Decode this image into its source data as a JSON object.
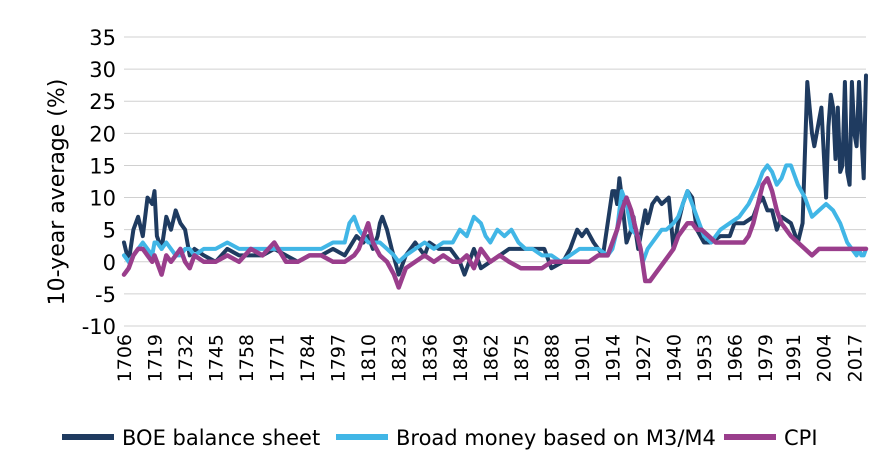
{
  "chart_data": {
    "type": "line",
    "ylabel": "10-year average (%)",
    "xlabel": "",
    "ylim": [
      -10,
      35
    ],
    "yticks": [
      35,
      30,
      25,
      20,
      15,
      10,
      5,
      0,
      -5,
      -10
    ],
    "xlim": [
      1706,
      2022
    ],
    "xticks": [
      "1706",
      "1719",
      "1732",
      "1745",
      "1758",
      "1771",
      "1784",
      "1797",
      "1810",
      "1823",
      "1836",
      "1849",
      "1862",
      "1875",
      "1888",
      "1901",
      "1914",
      "1927",
      "1940",
      "1953",
      "1966",
      "1979",
      "1991",
      "2004",
      "2017"
    ],
    "grid": "horizontal",
    "legend_position": "bottom",
    "series": [
      {
        "name": "BOE balance sheet",
        "color": "#1f3b60",
        "x": [
          1706,
          1708,
          1710,
          1712,
          1714,
          1716,
          1718,
          1719,
          1720,
          1722,
          1724,
          1726,
          1728,
          1730,
          1732,
          1734,
          1736,
          1740,
          1745,
          1750,
          1755,
          1760,
          1765,
          1770,
          1775,
          1780,
          1785,
          1790,
          1795,
          1800,
          1805,
          1808,
          1810,
          1812,
          1814,
          1815,
          1816,
          1818,
          1820,
          1823,
          1826,
          1830,
          1834,
          1836,
          1840,
          1845,
          1849,
          1851,
          1853,
          1855,
          1858,
          1862,
          1866,
          1870,
          1875,
          1880,
          1885,
          1888,
          1893,
          1896,
          1899,
          1901,
          1903,
          1906,
          1910,
          1914,
          1915,
          1916,
          1917,
          1918,
          1920,
          1922,
          1923,
          1925,
          1927,
          1928,
          1929,
          1931,
          1933,
          1935,
          1938,
          1940,
          1942,
          1944,
          1946,
          1948,
          1950,
          1953,
          1956,
          1960,
          1964,
          1966,
          1970,
          1974,
          1976,
          1978,
          1980,
          1982,
          1984,
          1986,
          1990,
          1993,
          1995,
          1997,
          1999,
          2000,
          2001,
          2002,
          2003,
          2005,
          2006,
          2007,
          2008,
          2009,
          2010,
          2011,
          2012,
          2013,
          2014,
          2015,
          2016,
          2017,
          2018,
          2019,
          2020,
          2021,
          2022
        ],
        "values": [
          3,
          0,
          5,
          7,
          4,
          10,
          9,
          11,
          4,
          2,
          7,
          5,
          8,
          6,
          5,
          1,
          2,
          1,
          0,
          2,
          1,
          1,
          1,
          2,
          1,
          0,
          1,
          1,
          2,
          1,
          4,
          3,
          4,
          2,
          4,
          6,
          7,
          5,
          2,
          -2,
          1,
          3,
          1,
          3,
          2,
          2,
          0,
          -2,
          0,
          2,
          -1,
          0,
          1,
          2,
          2,
          2,
          2,
          -1,
          0,
          2,
          5,
          4,
          5,
          3,
          1,
          11,
          11,
          9,
          13,
          10,
          3,
          5,
          7,
          2,
          6,
          8,
          6,
          9,
          10,
          9,
          10,
          2,
          6,
          9,
          11,
          10,
          5,
          3,
          3,
          4,
          4,
          6,
          6,
          7,
          9,
          10,
          8,
          8,
          5,
          7,
          6,
          3,
          6,
          28,
          20,
          18,
          20,
          22,
          24,
          10,
          21,
          26,
          24,
          16,
          24,
          14,
          15,
          28,
          14,
          12,
          28,
          20,
          18,
          28,
          20,
          13,
          29
        ]
      },
      {
        "name": "Broad money based on M3/M4",
        "color": "#41b6e6",
        "x": [
          1706,
          1708,
          1710,
          1712,
          1714,
          1716,
          1718,
          1719,
          1720,
          1722,
          1724,
          1726,
          1728,
          1730,
          1732,
          1734,
          1736,
          1740,
          1745,
          1750,
          1755,
          1760,
          1765,
          1770,
          1775,
          1780,
          1785,
          1790,
          1795,
          1800,
          1802,
          1804,
          1806,
          1808,
          1810,
          1812,
          1815,
          1818,
          1821,
          1823,
          1826,
          1830,
          1834,
          1838,
          1842,
          1846,
          1849,
          1852,
          1855,
          1858,
          1860,
          1862,
          1865,
          1868,
          1871,
          1874,
          1877,
          1880,
          1884,
          1888,
          1892,
          1896,
          1900,
          1904,
          1908,
          1912,
          1914,
          1916,
          1917,
          1918,
          1920,
          1922,
          1925,
          1927,
          1929,
          1931,
          1933,
          1935,
          1937,
          1940,
          1942,
          1944,
          1946,
          1948,
          1950,
          1953,
          1956,
          1960,
          1964,
          1968,
          1972,
          1976,
          1978,
          1980,
          1982,
          1984,
          1986,
          1988,
          1990,
          1993,
          1996,
          1999,
          2002,
          2005,
          2008,
          2011,
          2014,
          2016,
          2018,
          2019,
          2020,
          2021,
          2022
        ],
        "values": [
          1,
          0,
          1,
          2,
          3,
          2,
          1,
          3,
          3,
          2,
          3,
          2,
          1,
          1,
          2,
          2,
          1,
          2,
          2,
          3,
          2,
          2,
          2,
          2,
          2,
          2,
          2,
          2,
          3,
          3,
          6,
          7,
          5,
          4,
          3,
          3,
          3,
          2,
          1,
          0,
          1,
          2,
          3,
          2,
          3,
          3,
          5,
          4,
          7,
          6,
          4,
          3,
          5,
          4,
          5,
          3,
          2,
          2,
          1,
          1,
          0,
          1,
          2,
          2,
          2,
          1,
          2,
          5,
          8,
          11,
          9,
          5,
          4,
          0,
          2,
          3,
          4,
          5,
          5,
          6,
          7,
          9,
          11,
          9,
          7,
          4,
          3,
          5,
          6,
          7,
          9,
          12,
          14,
          15,
          14,
          12,
          13,
          15,
          15,
          12,
          10,
          7,
          8,
          9,
          8,
          6,
          3,
          2,
          1,
          2,
          1,
          1,
          2
        ]
      },
      {
        "name": "CPI",
        "color": "#9a3e8c",
        "x": [
          1706,
          1708,
          1710,
          1712,
          1714,
          1716,
          1718,
          1719,
          1720,
          1722,
          1724,
          1726,
          1728,
          1730,
          1732,
          1734,
          1736,
          1740,
          1745,
          1750,
          1755,
          1760,
          1765,
          1770,
          1775,
          1780,
          1785,
          1790,
          1795,
          1800,
          1804,
          1806,
          1808,
          1810,
          1812,
          1815,
          1818,
          1821,
          1823,
          1826,
          1830,
          1834,
          1838,
          1842,
          1846,
          1849,
          1852,
          1855,
          1858,
          1862,
          1866,
          1870,
          1875,
          1880,
          1884,
          1888,
          1892,
          1896,
          1900,
          1904,
          1908,
          1912,
          1914,
          1916,
          1918,
          1920,
          1922,
          1924,
          1926,
          1928,
          1930,
          1932,
          1934,
          1936,
          1938,
          1940,
          1942,
          1944,
          1946,
          1948,
          1950,
          1952,
          1955,
          1958,
          1962,
          1966,
          1970,
          1972,
          1974,
          1976,
          1978,
          1980,
          1982,
          1984,
          1986,
          1988,
          1990,
          1993,
          1996,
          1999,
          2002,
          2005,
          2008,
          2011,
          2014,
          2017,
          2020,
          2022
        ],
        "values": [
          -2,
          -1,
          1,
          2,
          2,
          1,
          0,
          1,
          0,
          -2,
          1,
          0,
          1,
          2,
          0,
          -1,
          1,
          0,
          0,
          1,
          0,
          2,
          1,
          3,
          0,
          0,
          1,
          1,
          0,
          0,
          1,
          2,
          4,
          6,
          3,
          1,
          0,
          -2,
          -4,
          -1,
          0,
          1,
          0,
          1,
          0,
          0,
          1,
          -1,
          2,
          0,
          1,
          0,
          -1,
          -1,
          -1,
          0,
          0,
          0,
          0,
          0,
          1,
          1,
          3,
          5,
          8,
          10,
          8,
          5,
          2,
          -3,
          -3,
          -2,
          -1,
          0,
          1,
          2,
          4,
          5,
          6,
          6,
          5,
          5,
          4,
          3,
          3,
          3,
          3,
          4,
          6,
          9,
          12,
          13,
          11,
          8,
          6,
          5,
          4,
          3,
          2,
          1,
          2,
          2,
          2,
          2,
          2,
          2,
          2,
          2
        ]
      }
    ]
  }
}
